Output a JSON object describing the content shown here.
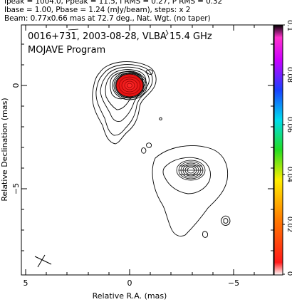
{
  "header": {
    "line1": "Ipeak = 1004.0, Ppeak = 11.5, I RMS = 0.27, P RMS = 0.32",
    "line2": "Ibase = 1.00, Pbase = 1.24 (mJy/beam), steps: x 2",
    "line3": "Beam: 0.77x0.66 mas at 72.7 deg., Nat. Wgt. (no taper)"
  },
  "plot": {
    "title": "0016+731, 2003-08-28, VLBA 15.4 GHz",
    "subtitle": "MOJAVE Program",
    "xlabel": "Relative R.A. (mas)",
    "ylabel": "Relative Declination (mas)",
    "x_ticks": [
      "5",
      "0",
      "−5"
    ],
    "y_ticks": [
      "0",
      "−5"
    ]
  },
  "colorbar": {
    "ticks": [
      "0.1",
      "0.08",
      "0.06",
      "0.04",
      "0.02",
      "0"
    ]
  }
}
